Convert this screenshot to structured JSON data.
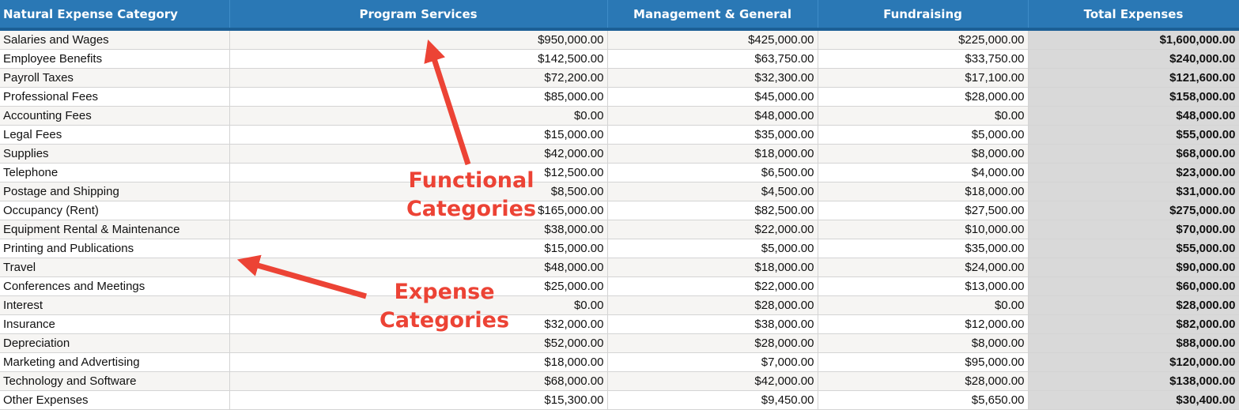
{
  "headers": [
    "Natural Expense Category",
    "Program Services",
    "Management & General",
    "Fundraising",
    "Total Expenses"
  ],
  "rows": [
    [
      "Salaries and Wages",
      "$950,000.00",
      "$425,000.00",
      "$225,000.00",
      "$1,600,000.00"
    ],
    [
      "Employee Benefits",
      "$142,500.00",
      "$63,750.00",
      "$33,750.00",
      "$240,000.00"
    ],
    [
      "Payroll Taxes",
      "$72,200.00",
      "$32,300.00",
      "$17,100.00",
      "$121,600.00"
    ],
    [
      "Professional Fees",
      "$85,000.00",
      "$45,000.00",
      "$28,000.00",
      "$158,000.00"
    ],
    [
      "Accounting Fees",
      "$0.00",
      "$48,000.00",
      "$0.00",
      "$48,000.00"
    ],
    [
      "Legal Fees",
      "$15,000.00",
      "$35,000.00",
      "$5,000.00",
      "$55,000.00"
    ],
    [
      "Supplies",
      "$42,000.00",
      "$18,000.00",
      "$8,000.00",
      "$68,000.00"
    ],
    [
      "Telephone",
      "$12,500.00",
      "$6,500.00",
      "$4,000.00",
      "$23,000.00"
    ],
    [
      "Postage and Shipping",
      "$8,500.00",
      "$4,500.00",
      "$18,000.00",
      "$31,000.00"
    ],
    [
      "Occupancy (Rent)",
      "$165,000.00",
      "$82,500.00",
      "$27,500.00",
      "$275,000.00"
    ],
    [
      "Equipment Rental & Maintenance",
      "$38,000.00",
      "$22,000.00",
      "$10,000.00",
      "$70,000.00"
    ],
    [
      "Printing and Publications",
      "$15,000.00",
      "$5,000.00",
      "$35,000.00",
      "$55,000.00"
    ],
    [
      "Travel",
      "$48,000.00",
      "$18,000.00",
      "$24,000.00",
      "$90,000.00"
    ],
    [
      "Conferences and Meetings",
      "$25,000.00",
      "$22,000.00",
      "$13,000.00",
      "$60,000.00"
    ],
    [
      "Interest",
      "$0.00",
      "$28,000.00",
      "$0.00",
      "$28,000.00"
    ],
    [
      "Insurance",
      "$32,000.00",
      "$38,000.00",
      "$12,000.00",
      "$82,000.00"
    ],
    [
      "Depreciation",
      "$52,000.00",
      "$28,000.00",
      "$8,000.00",
      "$88,000.00"
    ],
    [
      "Marketing and Advertising",
      "$18,000.00",
      "$7,000.00",
      "$95,000.00",
      "$120,000.00"
    ],
    [
      "Technology and Software",
      "$68,000.00",
      "$42,000.00",
      "$28,000.00",
      "$138,000.00"
    ],
    [
      "Other Expenses",
      "$15,300.00",
      "$9,450.00",
      "$5,650.00",
      "$30,400.00"
    ]
  ],
  "annotations": {
    "functional": {
      "line1": "Functional",
      "line2": "Categories"
    },
    "expense": {
      "line1": "Expense",
      "line2": "Categories"
    }
  },
  "colors": {
    "header_bg": "#2a78b5",
    "annotation": "#ec4335",
    "total_column_bg": "#d9d9d9"
  }
}
